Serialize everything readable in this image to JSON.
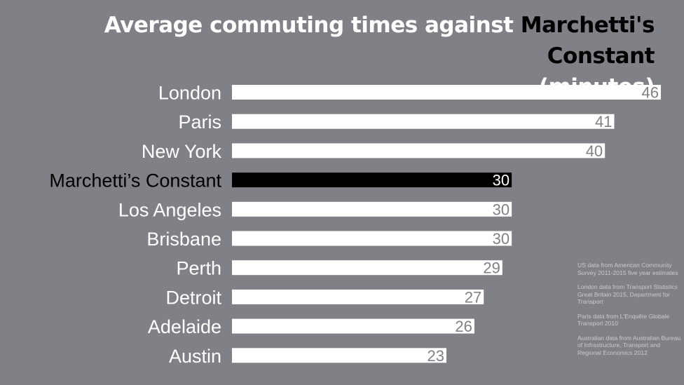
{
  "header": {
    "title_part1": "Average commuting times against ",
    "title_highlight": "Marchetti's Constant",
    "title_part2": "(minutes)"
  },
  "chart_data": {
    "type": "bar",
    "orientation": "horizontal",
    "title": "Average commuting times against Marchetti's Constant (minutes)",
    "categories": [
      "London",
      "Paris",
      "New York",
      "Marchetti’s Constant",
      "Los Angeles",
      "Brisbane",
      "Perth",
      "Detroit",
      "Adelaide",
      "Austin"
    ],
    "values": [
      46,
      41,
      40,
      30,
      30,
      30,
      29,
      27,
      26,
      23
    ],
    "highlight_category": "Marchetti’s Constant",
    "colors": {
      "background": "#808186",
      "bar": "#ffffff",
      "bar_highlight": "#000000",
      "label": "#ffffff",
      "label_highlight": "#000000",
      "value_text": "#808186",
      "value_text_highlight": "#ffffff"
    },
    "xlim": [
      0,
      46
    ],
    "grid": false,
    "legend": "none"
  },
  "notes": [
    "US data from American Community Survey 2011-2015 five year estimates",
    "London data from Transport Statistics Great Britain 2015, Department for Transport",
    "Paris data from L'Enquête Globale Transport 2010",
    "Australian data from Australian Bureau of Infrastructure, Transport and Regional Economics 2012"
  ]
}
